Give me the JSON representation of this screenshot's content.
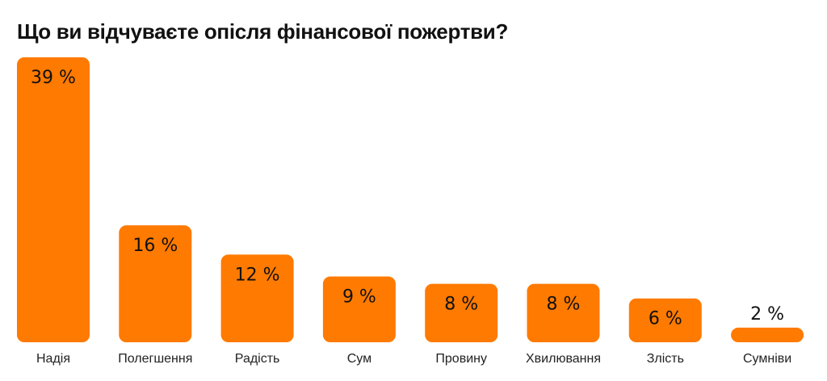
{
  "chart_data": {
    "type": "bar",
    "title": "Що ви відчуваєте опісля фінансової пожертви?",
    "categories": [
      "Надія",
      "Полегшення",
      "Радість",
      "Сум",
      "Провину",
      "Хвилювання",
      "Злість",
      "Сумніви"
    ],
    "values": [
      39,
      16,
      12,
      9,
      8,
      8,
      6,
      2
    ],
    "value_labels": [
      "39 %",
      "16 %",
      "12 %",
      "9 %",
      "8 %",
      "8 %",
      "6 %",
      "2 %"
    ],
    "xlabel": "",
    "ylabel": "",
    "ylim": [
      0,
      39
    ],
    "grid": false,
    "bar_color": "#FF7A00"
  }
}
